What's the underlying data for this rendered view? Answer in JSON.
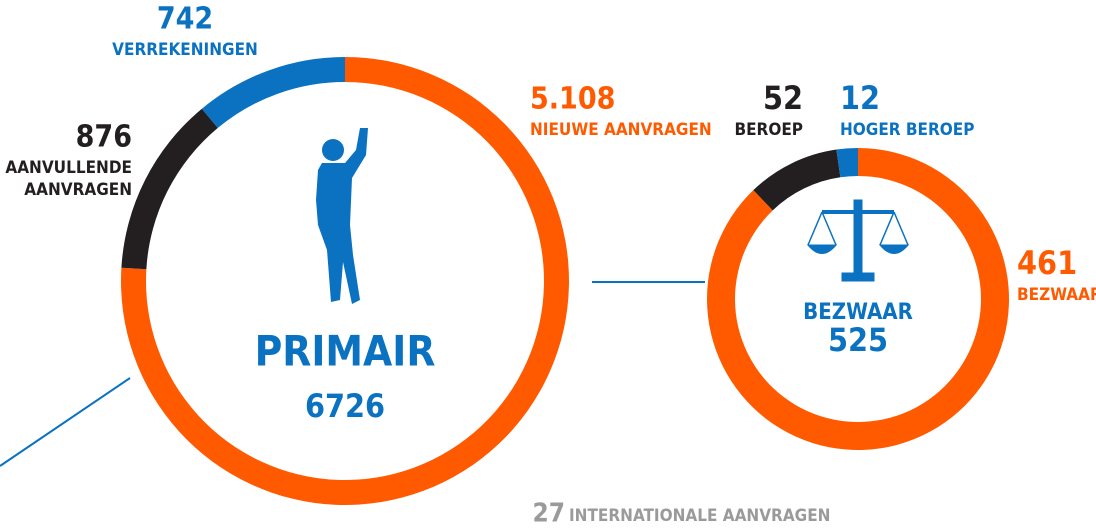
{
  "chart_data": [
    {
      "type": "donut",
      "title": "PRIMAIR",
      "total": 6726,
      "categories": [
        "NIEUWE AANVRAGEN",
        "AANVULLENDE AANVRAGEN",
        "VERREKENINGEN"
      ],
      "values": [
        5108,
        876,
        742
      ],
      "value_labels": [
        "5.108",
        "876",
        "742"
      ],
      "colors": [
        "#ff5a00",
        "#231f20",
        "#0a72c0"
      ]
    },
    {
      "type": "donut",
      "title": "BEZWAAR",
      "total": 525,
      "categories": [
        "BEZWAAR",
        "BEROEP",
        "HOGER BEROEP"
      ],
      "values": [
        461,
        52,
        12
      ],
      "colors": [
        "#ff5a00",
        "#231f20",
        "#0a72c0"
      ]
    }
  ],
  "footnote": {
    "value": 27,
    "label": "INTERNATIONALE AANVRAGEN"
  }
}
